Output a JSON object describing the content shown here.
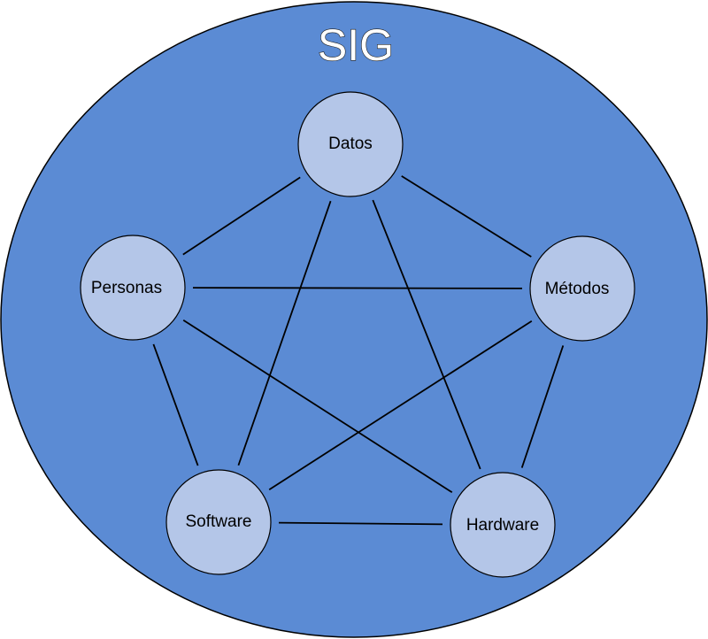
{
  "diagram": {
    "title": "SIG",
    "nodes": [
      {
        "id": "datos",
        "label": "Datos"
      },
      {
        "id": "personas",
        "label": "Personas"
      },
      {
        "id": "metodos",
        "label": "Métodos"
      },
      {
        "id": "software",
        "label": "Software"
      },
      {
        "id": "hardware",
        "label": "Hardware"
      }
    ],
    "edges": [
      [
        "datos",
        "personas"
      ],
      [
        "datos",
        "metodos"
      ],
      [
        "datos",
        "software"
      ],
      [
        "datos",
        "hardware"
      ],
      [
        "personas",
        "metodos"
      ],
      [
        "personas",
        "software"
      ],
      [
        "personas",
        "hardware"
      ],
      [
        "metodos",
        "software"
      ],
      [
        "metodos",
        "hardware"
      ],
      [
        "software",
        "hardware"
      ]
    ],
    "colors": {
      "outer_fill": "#5b8bd4",
      "outer_stroke": "#000000",
      "node_fill": "#b4c6e8",
      "node_stroke": "#000000",
      "edge": "#000000"
    }
  }
}
